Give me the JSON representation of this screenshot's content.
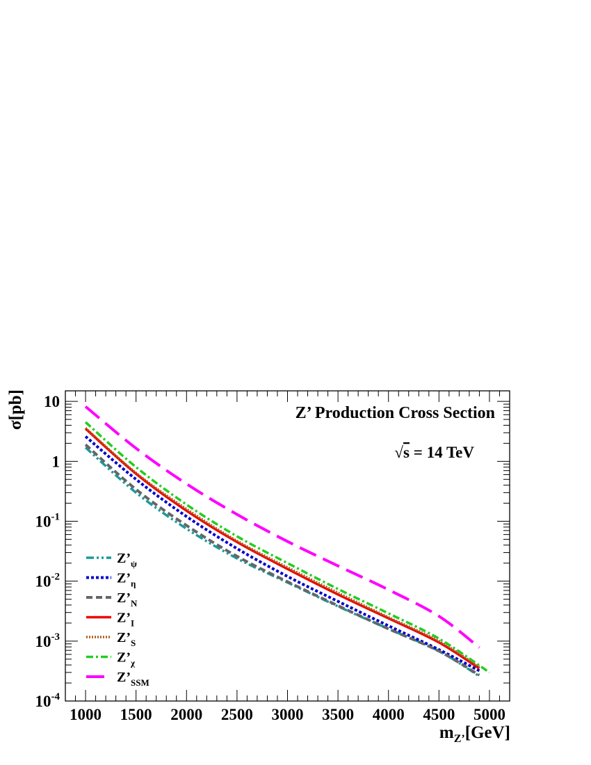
{
  "chart_data": {
    "type": "line",
    "title": "Z’ Production Cross Section",
    "annotation": {
      "sqrt": "√",
      "s": "s",
      "rest": " = 14 TeV"
    },
    "ylabel": "σ[pb]",
    "xlabel": {
      "base": "m",
      "sub": "Z’",
      "unit": "[GeV]"
    },
    "xlim": [
      800,
      5200
    ],
    "ylim": [
      0.0001,
      15
    ],
    "y_scale": "log",
    "x_ticks": [
      1000,
      1500,
      2000,
      2500,
      3000,
      3500,
      4000,
      4500,
      5000
    ],
    "y_ticks": [
      {
        "value": 10,
        "base": "10",
        "exp": ""
      },
      {
        "value": 1,
        "base": "1",
        "exp": ""
      },
      {
        "value": 0.1,
        "base": "10",
        "exp": "-1"
      },
      {
        "value": 0.01,
        "base": "10",
        "exp": "-2"
      },
      {
        "value": 0.001,
        "base": "10",
        "exp": "-3"
      },
      {
        "value": 0.0001,
        "base": "10",
        "exp": "-4"
      }
    ],
    "grid": false,
    "legend_position": "bottom-left",
    "series": [
      {
        "base": "Z’",
        "sub": "ψ",
        "color": "#1a9a9a",
        "dash": "11 4 3 4 3 4",
        "width": 3.5,
        "x": [
          1000,
          1500,
          2000,
          2500,
          3000,
          3500,
          4000,
          4500,
          4900
        ],
        "y": [
          1.7,
          0.3,
          0.075,
          0.024,
          0.0095,
          0.0038,
          0.0016,
          0.00068,
          0.00026
        ]
      },
      {
        "base": "Z’",
        "sub": "η",
        "color": "#0000cc",
        "dash": "4 3",
        "width": 4,
        "x": [
          1000,
          1500,
          2000,
          2500,
          3000,
          3500,
          4000,
          4500,
          4900
        ],
        "y": [
          2.6,
          0.5,
          0.12,
          0.035,
          0.012,
          0.0046,
          0.0018,
          0.00072,
          0.00032
        ]
      },
      {
        "base": "Z’",
        "sub": "N",
        "color": "#666666",
        "dash": "9 5",
        "width": 4,
        "x": [
          1000,
          1500,
          2000,
          2500,
          3000,
          3500,
          4000,
          4500,
          4900
        ],
        "y": [
          1.9,
          0.34,
          0.085,
          0.026,
          0.0098,
          0.0039,
          0.0016,
          0.00068,
          0.00027
        ]
      },
      {
        "base": "Z’",
        "sub": "I",
        "color": "#ee0000",
        "dash": "",
        "width": 3.5,
        "x": [
          1000,
          1500,
          2000,
          2500,
          3000,
          3500,
          4000,
          4500,
          4900
        ],
        "y": [
          3.5,
          0.62,
          0.15,
          0.045,
          0.016,
          0.006,
          0.0024,
          0.00095,
          0.00035
        ]
      },
      {
        "base": "Z’",
        "sub": "S",
        "color": "#b05a1a",
        "dash": "2 2",
        "width": 3.5,
        "x": [
          1000,
          1500,
          2000,
          2500,
          3000,
          3500,
          4000,
          4500,
          4900
        ],
        "y": [
          3.6,
          0.64,
          0.16,
          0.047,
          0.017,
          0.0064,
          0.0025,
          0.001,
          0.00037
        ]
      },
      {
        "base": "Z’",
        "sub": "χ",
        "color": "#22cc22",
        "dash": "10 4 3 4",
        "width": 3.5,
        "x": [
          1000,
          1500,
          2000,
          2500,
          3000,
          3500,
          4000,
          4500,
          5000
        ],
        "y": [
          4.5,
          0.8,
          0.19,
          0.056,
          0.02,
          0.0074,
          0.0029,
          0.0011,
          0.0003
        ]
      },
      {
        "base": "Z’",
        "sub": "SSM",
        "color": "#ff00ff",
        "dash": "26 11",
        "width": 4,
        "x": [
          1000,
          1500,
          2000,
          2500,
          3000,
          3500,
          4000,
          4500,
          4900
        ],
        "y": [
          8.2,
          1.65,
          0.42,
          0.13,
          0.046,
          0.018,
          0.0072,
          0.0026,
          0.00078
        ]
      }
    ]
  }
}
